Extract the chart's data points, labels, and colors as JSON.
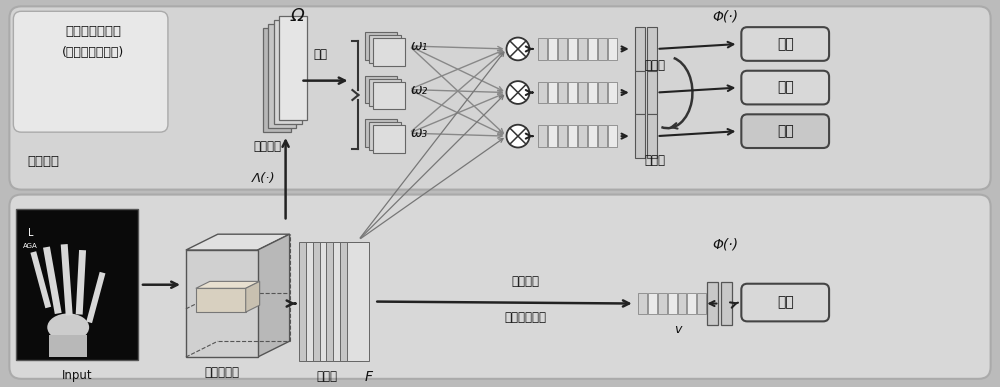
{
  "title_top1": "多重注意力模块",
  "title_top2": "(仅在训练时激活)",
  "title_bot": "主干网络",
  "omega_label": "Ω",
  "lambda_label": "Λ(·)",
  "split_label": "拆分",
  "attention_label": "注意力图",
  "omega1": "ω₁",
  "omega2": "ω₂",
  "omega3": "ω₃",
  "diversity_label": "多样性",
  "discriminability_label": "区分性",
  "phi_label1": "Φ(·)",
  "phi_label2": "Φ(·)",
  "bone_age": "骨龄",
  "input_label": "Input",
  "feature_extractor": "特征提取器",
  "feature_map": "特征图",
  "feature_vector": "特征向量",
  "gap_label": "全局平均池化",
  "F_label": "F",
  "v_label": "v",
  "bg_color": "#c8c8c8"
}
